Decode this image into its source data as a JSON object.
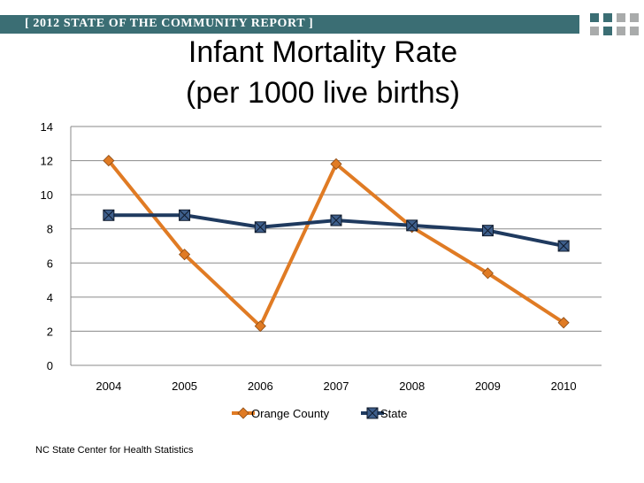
{
  "banner": {
    "text": "[ 2012 STATE OF THE COMMUNITY REPORT ]"
  },
  "colors": {
    "banner": "#3b6e74",
    "square_teal": "#3b6e74",
    "square_gray": "#a9abab",
    "orange": "#e07b24",
    "navy": "#1f3a5f"
  },
  "chart_data": {
    "type": "line",
    "title_lines": [
      "Infant Mortality Rate",
      "(per 1000 live births)"
    ],
    "categories": [
      "2004",
      "2005",
      "2006",
      "2007",
      "2008",
      "2009",
      "2010"
    ],
    "series": [
      {
        "name": "Orange County",
        "values": [
          12.0,
          6.5,
          2.3,
          11.8,
          8.1,
          5.4,
          2.5
        ],
        "color": "#e07b24",
        "marker": "diamond"
      },
      {
        "name": "State",
        "values": [
          8.8,
          8.8,
          8.1,
          8.5,
          8.2,
          7.9,
          7.0
        ],
        "color": "#1f3a5f",
        "marker": "x-square"
      }
    ],
    "ylim": [
      0,
      14
    ],
    "yticks": [
      "0",
      "2",
      "4",
      "6",
      "8",
      "10",
      "12",
      "14"
    ],
    "grid": true,
    "legend": "bottom-center",
    "xlabel": "",
    "ylabel": ""
  },
  "source": "NC State Center for Health Statistics"
}
